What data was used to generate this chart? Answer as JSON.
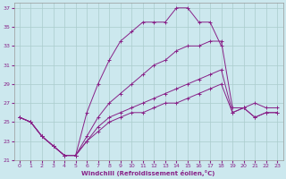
{
  "xlabel": "Windchill (Refroidissement éolien,°C)",
  "background_color": "#cce8ee",
  "grid_color": "#aacccc",
  "line_color": "#882288",
  "xlim": [
    -0.5,
    23.5
  ],
  "ylim": [
    21,
    37.5
  ],
  "yticks": [
    21,
    23,
    25,
    27,
    29,
    31,
    33,
    35,
    37
  ],
  "xticks": [
    0,
    1,
    2,
    3,
    4,
    5,
    6,
    7,
    8,
    9,
    10,
    11,
    12,
    13,
    14,
    15,
    16,
    17,
    18,
    19,
    20,
    21,
    22,
    23
  ],
  "series": [
    {
      "x": [
        0,
        1,
        2,
        3,
        4,
        5,
        6,
        7,
        8,
        9,
        10,
        11,
        12,
        13,
        14,
        15,
        16,
        17,
        18
      ],
      "y": [
        25.5,
        25.0,
        23.5,
        22.5,
        21.5,
        21.5,
        26.0,
        29.0,
        31.5,
        33.5,
        34.5,
        35.5,
        35.5,
        35.5,
        37.0,
        37.0,
        35.5,
        35.5,
        33.0
      ]
    },
    {
      "x": [
        0,
        1,
        2,
        3,
        4,
        5,
        6,
        7,
        8,
        9,
        10,
        11,
        12,
        13,
        14,
        15,
        16,
        17,
        18,
        19,
        20,
        21,
        22,
        23
      ],
      "y": [
        25.5,
        25.0,
        23.5,
        22.5,
        21.5,
        21.5,
        23.5,
        25.5,
        27.0,
        28.0,
        29.0,
        30.0,
        31.0,
        31.5,
        32.5,
        33.0,
        33.0,
        33.5,
        33.5,
        26.5,
        26.5,
        27.0,
        26.5,
        26.5
      ]
    },
    {
      "x": [
        0,
        1,
        2,
        3,
        4,
        5,
        6,
        7,
        8,
        9,
        10,
        11,
        12,
        13,
        14,
        15,
        16,
        17,
        18,
        19,
        20,
        21,
        22,
        23
      ],
      "y": [
        25.5,
        25.0,
        23.5,
        22.5,
        21.5,
        21.5,
        23.0,
        24.5,
        25.5,
        26.0,
        26.5,
        27.0,
        27.5,
        28.0,
        28.5,
        29.0,
        29.5,
        30.0,
        30.5,
        26.0,
        26.5,
        25.5,
        26.0,
        26.0
      ]
    },
    {
      "x": [
        0,
        1,
        2,
        3,
        4,
        5,
        6,
        7,
        8,
        9,
        10,
        11,
        12,
        13,
        14,
        15,
        16,
        17,
        18,
        19,
        20,
        21,
        22,
        23
      ],
      "y": [
        25.5,
        25.0,
        23.5,
        22.5,
        21.5,
        21.5,
        23.0,
        24.0,
        25.0,
        25.5,
        26.0,
        26.0,
        26.5,
        27.0,
        27.0,
        27.5,
        28.0,
        28.5,
        29.0,
        26.0,
        26.5,
        25.5,
        26.0,
        26.0
      ]
    }
  ]
}
